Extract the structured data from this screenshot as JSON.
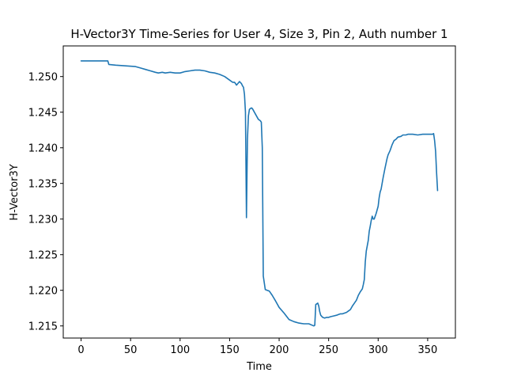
{
  "chart_data": {
    "type": "line",
    "title": "H-Vector3Y Time-Series for User 4, Size 3, Pin 2, Auth number 1",
    "xlabel": "Time",
    "ylabel": "H-Vector3Y",
    "xlim": [
      -18,
      378
    ],
    "ylim": [
      1.2133,
      1.2543
    ],
    "x_ticks": [
      0,
      50,
      100,
      150,
      200,
      250,
      300,
      350
    ],
    "y_ticks": [
      1.215,
      1.22,
      1.225,
      1.23,
      1.235,
      1.24,
      1.245,
      1.25
    ],
    "y_tick_labels": [
      "1.215",
      "1.220",
      "1.225",
      "1.230",
      "1.235",
      "1.240",
      "1.245",
      "1.250"
    ],
    "grid": false,
    "line_color": "#1f77b4",
    "series": [
      {
        "x": [
          0,
          10,
          20,
          27,
          28,
          35,
          45,
          55,
          60,
          65,
          70,
          75,
          78,
          82,
          85,
          90,
          95,
          100,
          105,
          110,
          115,
          120,
          125,
          130,
          135,
          140,
          145,
          150,
          153,
          155,
          157,
          160,
          162,
          163,
          164,
          165,
          166,
          167,
          168,
          169,
          170,
          171,
          172,
          173,
          175,
          177,
          179,
          181,
          182,
          183,
          184,
          186,
          188,
          190,
          193,
          196,
          200,
          205,
          210,
          215,
          220,
          225,
          230,
          235,
          236,
          237,
          238,
          239,
          240,
          241,
          242,
          244,
          246,
          248,
          250,
          252,
          255,
          258,
          260,
          262,
          264,
          266,
          268,
          270,
          272,
          274,
          276,
          278,
          280,
          282,
          284,
          285,
          286,
          287,
          288,
          290,
          291,
          292,
          293,
          294,
          295,
          296,
          298,
          300,
          301,
          302,
          303,
          305,
          307,
          309,
          310,
          312,
          314,
          316,
          318,
          320,
          323,
          325,
          328,
          330,
          335,
          340,
          345,
          350,
          355,
          356,
          357,
          358,
          359,
          360
        ],
        "y": [
          1.2522,
          1.2522,
          1.2522,
          1.2522,
          1.2517,
          1.2516,
          1.2515,
          1.2514,
          1.2512,
          1.251,
          1.2508,
          1.2506,
          1.2505,
          1.2506,
          1.2505,
          1.2506,
          1.2505,
          1.2505,
          1.2507,
          1.2508,
          1.2509,
          1.2509,
          1.2508,
          1.2506,
          1.2505,
          1.2503,
          1.25,
          1.2495,
          1.2492,
          1.2492,
          1.2488,
          1.2493,
          1.249,
          1.2487,
          1.2485,
          1.2475,
          1.245,
          1.2302,
          1.2412,
          1.2445,
          1.2454,
          1.2455,
          1.2456,
          1.2455,
          1.245,
          1.2445,
          1.244,
          1.2438,
          1.2436,
          1.24,
          1.222,
          1.2201,
          1.22,
          1.2199,
          1.2193,
          1.2186,
          1.2176,
          1.2168,
          1.2159,
          1.2156,
          1.2154,
          1.2153,
          1.2153,
          1.215,
          1.2151,
          1.218,
          1.2181,
          1.2182,
          1.2178,
          1.217,
          1.2165,
          1.2162,
          1.2161,
          1.2162,
          1.2162,
          1.2163,
          1.2164,
          1.2165,
          1.2166,
          1.2167,
          1.2167,
          1.2168,
          1.2169,
          1.2171,
          1.2173,
          1.2178,
          1.2182,
          1.2186,
          1.2193,
          1.2198,
          1.2202,
          1.2208,
          1.2215,
          1.224,
          1.2255,
          1.227,
          1.2283,
          1.229,
          1.2298,
          1.2304,
          1.23,
          1.23,
          1.2308,
          1.2318,
          1.233,
          1.2338,
          1.2342,
          1.2358,
          1.2372,
          1.2385,
          1.239,
          1.2396,
          1.2404,
          1.241,
          1.2412,
          1.2415,
          1.2416,
          1.2418,
          1.2418,
          1.2419,
          1.2419,
          1.2418,
          1.2419,
          1.2419,
          1.2419,
          1.242,
          1.241,
          1.2395,
          1.2365,
          1.234
        ]
      }
    ]
  }
}
